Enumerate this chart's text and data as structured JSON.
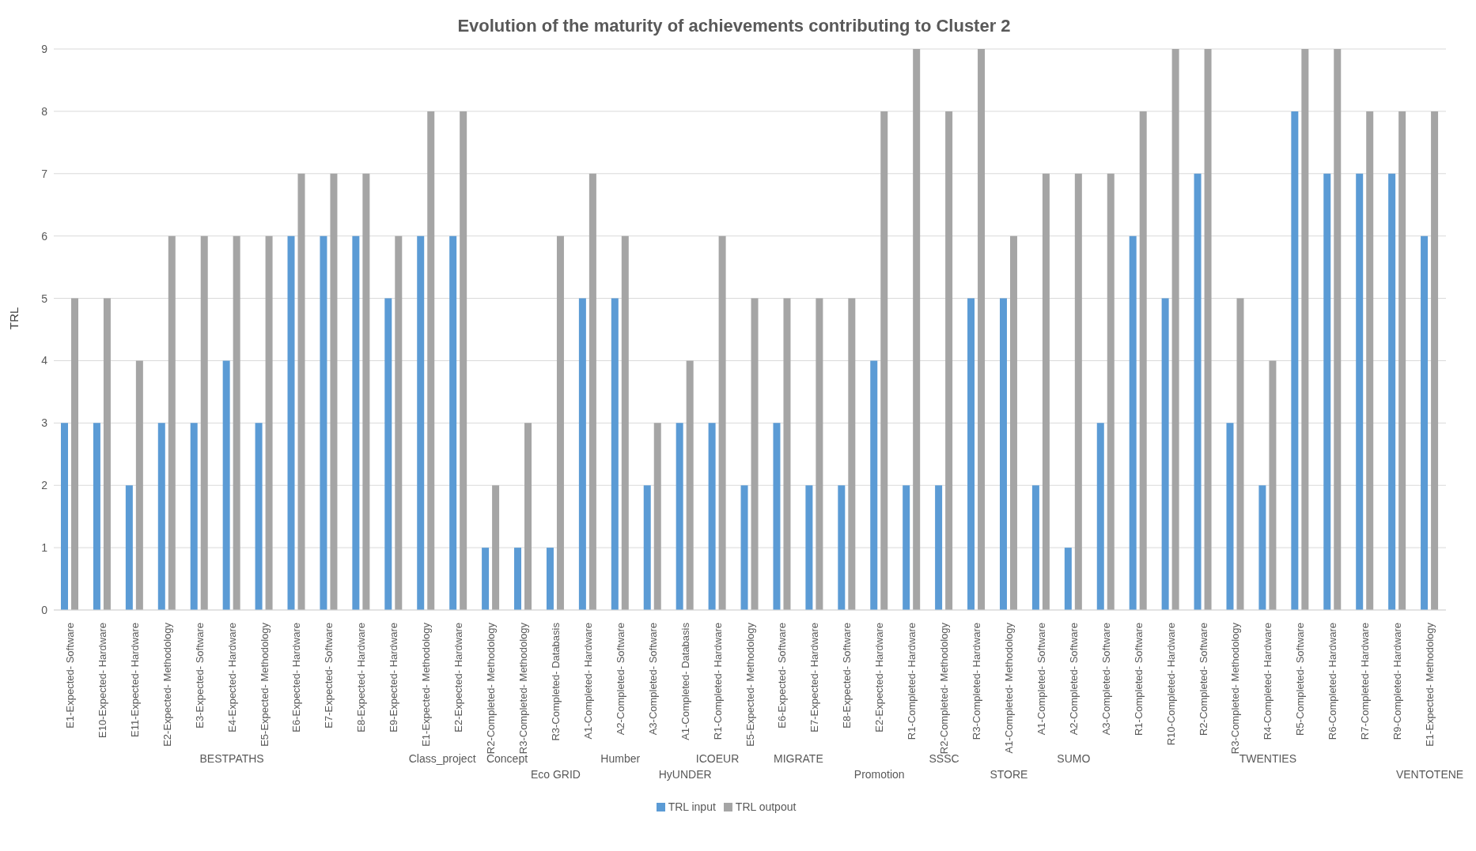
{
  "chart_data": {
    "type": "bar",
    "title": "Evolution of the maturity of achievements contributing to Cluster 2",
    "ylabel": "TRL",
    "categories": [
      "E1-Expected- Software",
      "E10-Expected- Hardware",
      "E11-Expected- Hardware",
      "E2-Expected- Methodology",
      "E3-Expected- Software",
      "E4-Expected- Hardware",
      "E5-Expected- Methodology",
      "E6-Expected- Hardware",
      "E7-Expected- Software",
      "E8-Expected- Hardware",
      "E9-Expected- Hardware",
      "E1-Expected- Methodology",
      "E2-Expected- Hardware",
      "R2-Completed- Methodology",
      "R3-Completed- Methodology",
      "R3-Completed- Databasis",
      "A1-Completed- Hardware",
      "A2-Completed- Software",
      "A3-Completed- Software",
      "A1-Completed- Databasis",
      "R1-Completed- Hardware",
      "E5-Expected- Methodology",
      "E6-Expected- Software",
      "E7-Expected- Hardware",
      "E8-Expected- Software",
      "E2-Expected- Hardware",
      "R1-Completed- Hardware",
      "R2-Completed- Methodology",
      "R3-Completed- Hardware",
      "A1-Completed- Methodology",
      "A1-Completed- Software",
      "A2-Completed- Software",
      "A3-Completed- Software",
      "R1-Completed- Software",
      "R10-Completed- Hardware",
      "R2-Completed- Software",
      "R3-Completed- Methodology",
      "R4-Completed- Hardware",
      "R5-Completed- Software",
      "R6-Completed- Hardware",
      "R7-Completed- Hardware",
      "R9-Completed- Hardware",
      "E1-Expected- Methodology"
    ],
    "series": [
      {
        "name": "TRL input",
        "color": "#5b9bd5",
        "values": [
          3,
          3,
          2,
          3,
          3,
          4,
          3,
          6,
          6,
          6,
          5,
          6,
          6,
          1,
          1,
          1,
          5,
          5,
          2,
          3,
          3,
          2,
          3,
          2,
          2,
          4,
          2,
          2,
          5,
          5,
          2,
          1,
          3,
          6,
          5,
          7,
          3,
          2,
          8,
          7,
          7,
          7,
          6
        ]
      },
      {
        "name": "TRL outpout",
        "color": "#a5a5a5",
        "values": [
          5,
          5,
          4,
          6,
          6,
          6,
          6,
          7,
          7,
          7,
          6,
          8,
          8,
          2,
          3,
          6,
          7,
          6,
          3,
          4,
          6,
          5,
          5,
          5,
          5,
          8,
          9,
          8,
          9,
          6,
          7,
          7,
          7,
          8,
          9,
          9,
          5,
          4,
          9,
          9,
          8,
          8,
          8
        ]
      }
    ],
    "annotations": [
      "BESTPATHS",
      "Class_project",
      "Concept",
      "Eco GRID",
      "Humber",
      "HyUNDER",
      "ICOEUR",
      "MIGRATE",
      "Promotion",
      "SSSC",
      "STORE",
      "SUMO",
      "TWENTIES",
      "VENTOTENE"
    ],
    "ylim": [
      0,
      9
    ],
    "yticks": [
      0,
      1,
      2,
      3,
      4,
      5,
      6,
      7,
      8,
      9
    ],
    "grid": "y",
    "legend": "bottom"
  }
}
